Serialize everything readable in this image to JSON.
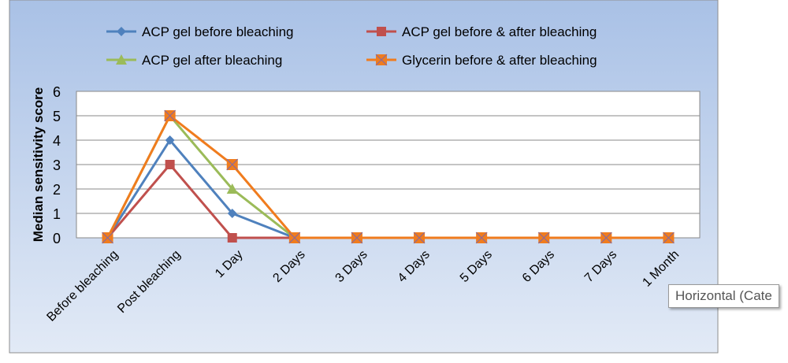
{
  "chart_data": {
    "type": "line",
    "title": "",
    "xlabel": "",
    "ylabel": "Median sensitivity score",
    "ylim": [
      0,
      6
    ],
    "yticks": [
      "0",
      "1",
      "2",
      "3",
      "4",
      "5",
      "6"
    ],
    "grid": true,
    "legend_position": "top",
    "categories": [
      "Before bleaching",
      "Post bleaching",
      "1 Day",
      "2 Days",
      "3 Days",
      "4 Days",
      "5 Days",
      "6 Days",
      "7 Days",
      "1 Month"
    ],
    "series": [
      {
        "name": "ACP gel before bleaching",
        "color": "#4F81BD",
        "marker": "diamond",
        "values": [
          0,
          4,
          1,
          0,
          0,
          0,
          0,
          0,
          0,
          0
        ]
      },
      {
        "name": "ACP gel before & after bleaching",
        "color": "#C0504D",
        "marker": "square",
        "values": [
          0,
          3,
          0,
          0,
          0,
          0,
          0,
          0,
          0,
          0
        ]
      },
      {
        "name": "ACP gel after bleaching",
        "color": "#9BBB59",
        "marker": "triangle",
        "values": [
          0,
          5,
          2,
          0,
          0,
          0,
          0,
          0,
          0,
          0
        ]
      },
      {
        "name": "Glycerin before & after bleaching",
        "color": "#F07C1E",
        "marker": "x-square",
        "values": [
          0,
          5,
          3,
          0,
          0,
          0,
          0,
          0,
          0,
          0
        ]
      }
    ]
  },
  "tooltip": {
    "text": "Horizontal (Cate"
  }
}
